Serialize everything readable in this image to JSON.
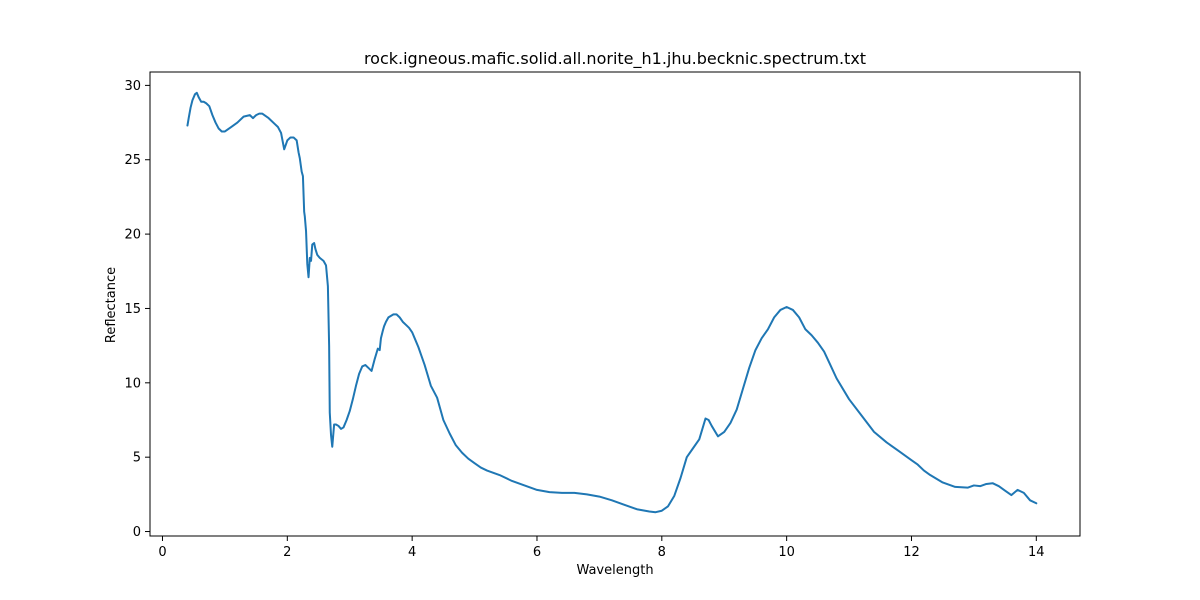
{
  "chart_data": {
    "type": "line",
    "title": "rock.igneous.mafic.solid.all.norite_h1.jhu.becknic.spectrum.txt",
    "xlabel": "Wavelength",
    "ylabel": "Reflectance",
    "xlim": [
      -0.2,
      14.7
    ],
    "ylim": [
      -0.3,
      30.9
    ],
    "grid": false,
    "legend": "none",
    "x_ticks": [
      0,
      2,
      4,
      6,
      8,
      10,
      12,
      14
    ],
    "x_tick_labels": [
      "0",
      "2",
      "4",
      "6",
      "8",
      "10",
      "12",
      "14"
    ],
    "y_ticks": [
      0,
      5,
      10,
      15,
      20,
      25,
      30
    ],
    "y_tick_labels": [
      "0",
      "5",
      "10",
      "15",
      "20",
      "25",
      "30"
    ],
    "colors": {
      "series": "#1f77b4",
      "axis": "#000000",
      "background": "#ffffff"
    },
    "series": [
      {
        "x": [
          0.4,
          0.42,
          0.45,
          0.48,
          0.52,
          0.55,
          0.58,
          0.62,
          0.66,
          0.7,
          0.75,
          0.8,
          0.85,
          0.9,
          0.95,
          1.0,
          1.1,
          1.2,
          1.3,
          1.4,
          1.45,
          1.5,
          1.55,
          1.6,
          1.7,
          1.8,
          1.85,
          1.9,
          1.95,
          2.0,
          2.05,
          2.1,
          2.15,
          2.18,
          2.2,
          2.23,
          2.25,
          2.27,
          2.28,
          2.3,
          2.32,
          2.34,
          2.36,
          2.38,
          2.4,
          2.43,
          2.45,
          2.48,
          2.52,
          2.58,
          2.62,
          2.65,
          2.67,
          2.68,
          2.7,
          2.72,
          2.75,
          2.78,
          2.82,
          2.86,
          2.9,
          2.95,
          3.0,
          3.05,
          3.1,
          3.15,
          3.2,
          3.25,
          3.3,
          3.35,
          3.4,
          3.45,
          3.48,
          3.5,
          3.53,
          3.55,
          3.58,
          3.62,
          3.66,
          3.7,
          3.75,
          3.8,
          3.85,
          3.9,
          3.95,
          4.0,
          4.05,
          4.1,
          4.15,
          4.2,
          4.3,
          4.4,
          4.5,
          4.6,
          4.7,
          4.8,
          4.9,
          5.0,
          5.1,
          5.2,
          5.3,
          5.4,
          5.6,
          5.8,
          6.0,
          6.2,
          6.4,
          6.6,
          6.8,
          7.0,
          7.2,
          7.4,
          7.6,
          7.8,
          7.9,
          8.0,
          8.1,
          8.2,
          8.3,
          8.4,
          8.5,
          8.6,
          8.65,
          8.7,
          8.75,
          8.8,
          8.9,
          9.0,
          9.1,
          9.2,
          9.3,
          9.4,
          9.5,
          9.6,
          9.7,
          9.8,
          9.9,
          10.0,
          10.1,
          10.2,
          10.3,
          10.4,
          10.5,
          10.6,
          10.7,
          10.8,
          11.0,
          11.2,
          11.4,
          11.6,
          11.8,
          12.0,
          12.1,
          12.2,
          12.3,
          12.5,
          12.7,
          12.9,
          13.0,
          13.1,
          13.2,
          13.3,
          13.4,
          13.5,
          13.6,
          13.7,
          13.8,
          13.9,
          14.0
        ],
        "y": [
          27.3,
          27.8,
          28.5,
          29.0,
          29.4,
          29.5,
          29.2,
          28.9,
          28.9,
          28.8,
          28.6,
          28.0,
          27.5,
          27.1,
          26.9,
          26.9,
          27.2,
          27.5,
          27.9,
          28.0,
          27.8,
          28.0,
          28.1,
          28.1,
          27.8,
          27.4,
          27.2,
          26.8,
          25.7,
          26.3,
          26.5,
          26.5,
          26.3,
          25.5,
          25.1,
          24.2,
          23.9,
          21.5,
          21.2,
          20.2,
          18.0,
          17.1,
          18.4,
          18.2,
          19.3,
          19.4,
          19.0,
          18.6,
          18.4,
          18.2,
          17.9,
          16.5,
          12.5,
          8.0,
          6.5,
          5.7,
          7.2,
          7.2,
          7.1,
          6.9,
          7.0,
          7.5,
          8.1,
          8.9,
          9.8,
          10.6,
          11.1,
          11.2,
          11.0,
          10.8,
          11.6,
          12.3,
          12.2,
          13.0,
          13.5,
          13.8,
          14.1,
          14.4,
          14.5,
          14.6,
          14.6,
          14.4,
          14.1,
          13.9,
          13.7,
          13.4,
          12.9,
          12.4,
          11.8,
          11.2,
          9.8,
          9.0,
          7.5,
          6.6,
          5.8,
          5.3,
          4.9,
          4.6,
          4.3,
          4.1,
          3.95,
          3.8,
          3.4,
          3.1,
          2.8,
          2.65,
          2.6,
          2.6,
          2.5,
          2.35,
          2.1,
          1.8,
          1.5,
          1.35,
          1.3,
          1.4,
          1.7,
          2.4,
          3.6,
          5.0,
          5.6,
          6.2,
          6.9,
          7.6,
          7.5,
          7.1,
          6.4,
          6.7,
          7.3,
          8.2,
          9.6,
          11.0,
          12.2,
          13.0,
          13.6,
          14.4,
          14.9,
          15.1,
          14.9,
          14.4,
          13.6,
          13.2,
          12.7,
          12.1,
          11.2,
          10.3,
          8.9,
          7.8,
          6.7,
          6.0,
          5.4,
          4.8,
          4.5,
          4.1,
          3.8,
          3.3,
          3.0,
          2.95,
          3.1,
          3.05,
          3.2,
          3.25,
          3.05,
          2.75,
          2.45,
          2.8,
          2.6,
          2.1,
          1.9
        ]
      }
    ]
  }
}
